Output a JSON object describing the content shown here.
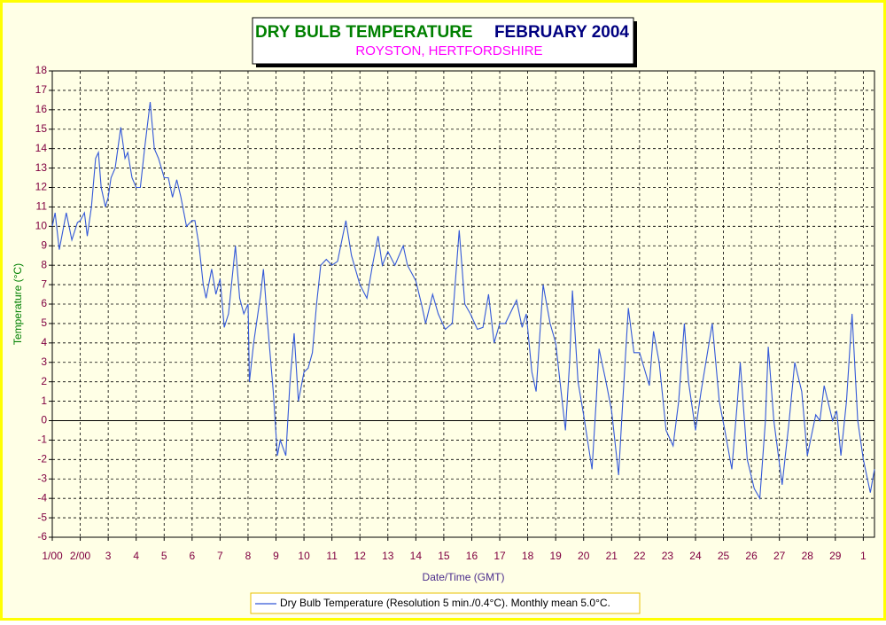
{
  "chart_data": {
    "type": "line",
    "title": "DRY BULB TEMPERATURE",
    "title_date": "FEBRUARY 2004",
    "subtitle": "ROYSTON, HERTFORDSHIRE",
    "x_label": "Date/Time (GMT)",
    "y_label": "Temperature (°C)",
    "grid": true,
    "xlim": [
      0,
      29.4
    ],
    "ylim": [
      -6,
      18
    ],
    "xticks": [
      {
        "value": 0,
        "label": "1/00"
      },
      {
        "value": 1,
        "label": "2/00"
      },
      {
        "value": 2,
        "label": "3"
      },
      {
        "value": 3,
        "label": "4"
      },
      {
        "value": 4,
        "label": "5"
      },
      {
        "value": 5,
        "label": "6"
      },
      {
        "value": 6,
        "label": "7"
      },
      {
        "value": 7,
        "label": "8"
      },
      {
        "value": 8,
        "label": "9"
      },
      {
        "value": 9,
        "label": "10"
      },
      {
        "value": 10,
        "label": "11"
      },
      {
        "value": 11,
        "label": "12"
      },
      {
        "value": 12,
        "label": "13"
      },
      {
        "value": 13,
        "label": "14"
      },
      {
        "value": 14,
        "label": "15"
      },
      {
        "value": 15,
        "label": "16"
      },
      {
        "value": 16,
        "label": "17"
      },
      {
        "value": 17,
        "label": "18"
      },
      {
        "value": 18,
        "label": "19"
      },
      {
        "value": 19,
        "label": "20"
      },
      {
        "value": 20,
        "label": "21"
      },
      {
        "value": 21,
        "label": "22"
      },
      {
        "value": 22,
        "label": "23"
      },
      {
        "value": 23,
        "label": "24"
      },
      {
        "value": 24,
        "label": "25"
      },
      {
        "value": 25,
        "label": "26"
      },
      {
        "value": 26,
        "label": "27"
      },
      {
        "value": 27,
        "label": "28"
      },
      {
        "value": 28,
        "label": "29"
      },
      {
        "value": 29,
        "label": "1"
      }
    ],
    "yticks": [
      -6,
      -5,
      -4,
      -3,
      -2,
      -1,
      0,
      1,
      2,
      3,
      4,
      5,
      6,
      7,
      8,
      9,
      10,
      11,
      12,
      13,
      14,
      15,
      16,
      17,
      18
    ],
    "x": [
      0,
      0.1,
      0.25,
      0.5,
      0.7,
      0.9,
      1.0,
      1.15,
      1.25,
      1.4,
      1.55,
      1.65,
      1.75,
      1.9,
      2.0,
      2.1,
      2.25,
      2.45,
      2.6,
      2.7,
      2.85,
      3.0,
      3.15,
      3.3,
      3.5,
      3.65,
      3.8,
      4.0,
      4.15,
      4.3,
      4.45,
      4.6,
      4.8,
      5.0,
      5.1,
      5.25,
      5.4,
      5.5,
      5.7,
      5.85,
      6.0,
      6.15,
      6.3,
      6.55,
      6.7,
      6.85,
      7.0,
      7.05,
      7.2,
      7.45,
      7.55,
      7.7,
      7.9,
      8.05,
      8.15,
      8.35,
      8.5,
      8.65,
      8.8,
      9.0,
      9.15,
      9.3,
      9.45,
      9.6,
      9.8,
      10.0,
      10.2,
      10.5,
      10.7,
      11.0,
      11.25,
      11.45,
      11.65,
      11.8,
      12.0,
      12.25,
      12.55,
      12.7,
      13.0,
      13.2,
      13.35,
      13.6,
      13.8,
      14.05,
      14.3,
      14.55,
      14.75,
      14.95,
      15.2,
      15.4,
      15.6,
      15.8,
      16.0,
      16.2,
      16.6,
      16.8,
      16.95,
      17.15,
      17.3,
      17.55,
      17.8,
      18.0,
      18.35,
      18.5,
      18.6,
      18.8,
      19.0,
      19.3,
      19.45,
      19.55,
      19.8,
      20.0,
      20.25,
      20.4,
      20.6,
      20.8,
      21.0,
      21.35,
      21.5,
      21.7,
      21.95,
      22.2,
      22.4,
      22.6,
      22.75,
      23.0,
      23.2,
      23.6,
      23.85,
      24.05,
      24.3,
      24.5,
      24.6,
      24.85,
      25.1,
      25.3,
      25.5,
      25.6,
      25.8,
      26.1,
      26.35,
      26.55,
      26.8,
      27.0,
      27.3,
      27.45,
      27.6,
      27.9,
      28.05,
      28.2,
      28.4,
      28.6,
      28.8,
      29.0,
      29.25,
      29.4
    ],
    "series": [
      {
        "name": "Dry Bulb Temperature (Resolution 5 min./0.4°C). Monthly mean 5.0°C.",
        "color": "#3358d8",
        "values": [
          10,
          10.7,
          8.8,
          10.7,
          9.3,
          10.2,
          10.3,
          10.7,
          9.5,
          11,
          13.5,
          13.8,
          12,
          11,
          11.5,
          12.5,
          13,
          15.1,
          13.5,
          13.8,
          12.5,
          12,
          12,
          14,
          16.4,
          14,
          13.5,
          12.5,
          12.5,
          11.5,
          12.4,
          11.5,
          10,
          10.3,
          10.3,
          9,
          7,
          6.3,
          7.8,
          6.5,
          7.3,
          4.8,
          5.5,
          9,
          6.3,
          5.5,
          6,
          2,
          4,
          6.5,
          7.8,
          5,
          1.5,
          -1.8,
          -1,
          -1.8,
          2,
          4.5,
          1,
          2.5,
          2.7,
          3.5,
          6,
          8,
          8.3,
          8,
          8.2,
          10.3,
          8.5,
          7,
          6.3,
          8,
          9.5,
          8,
          8.7,
          8,
          9,
          8,
          7.2,
          6,
          5,
          6.5,
          5.5,
          4.7,
          5,
          9.8,
          6,
          5.5,
          4.7,
          4.8,
          6.5,
          4,
          5,
          5,
          6.2,
          4.8,
          5.5,
          2.5,
          1.5,
          7,
          5,
          4,
          -0.5,
          3,
          6.7,
          2,
          0.3,
          -2.5,
          1,
          3.7,
          2,
          0.5,
          -2.8,
          1,
          5.8,
          3.5,
          3.5,
          1.8,
          4.6,
          3,
          -0.5,
          -1.3,
          1,
          5,
          2,
          -0.5,
          1.5,
          5,
          1,
          -0.5,
          -2.5,
          1,
          3,
          -2,
          -3.5,
          -4,
          0,
          3.8,
          0,
          -3.3,
          0,
          3,
          1.5,
          -1.8,
          0.3,
          0,
          1.8,
          0,
          0.5,
          -1.8,
          1,
          5.5,
          0,
          -2,
          -3.7,
          -2.5
        ]
      }
    ]
  }
}
